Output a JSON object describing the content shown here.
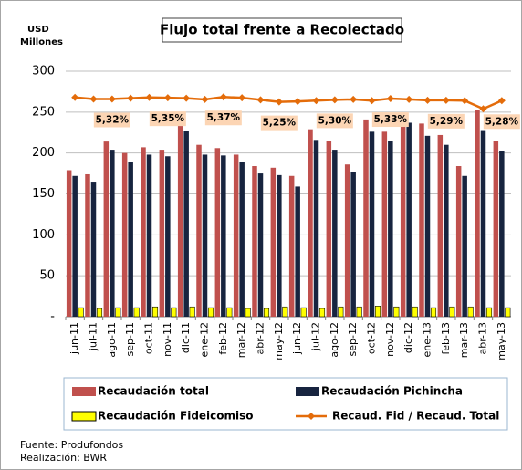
{
  "chart_data": {
    "type": "bar",
    "title": "Flujo total frente a Recolectado",
    "y_label_lines": [
      "USD",
      "Millones"
    ],
    "categories": [
      "jun-11",
      "jul-11",
      "ago-11",
      "sep-11",
      "oct-11",
      "nov-11",
      "dic-11",
      "ene-12",
      "feb-12",
      "mar-12",
      "abr-12",
      "may-12",
      "jun-12",
      "jul-12",
      "ago-12",
      "sep-12",
      "oct-12",
      "nov-12",
      "dic-12",
      "ene-13",
      "feb-13",
      "mar-13",
      "abr-13",
      "may-13"
    ],
    "series": [
      {
        "name": "Recaudación total",
        "color": "#c0504d",
        "values": [
          179,
          174,
          214,
          200,
          207,
          204,
          239,
          210,
          206,
          198,
          184,
          182,
          172,
          229,
          215,
          186,
          241,
          226,
          237,
          236,
          222,
          184,
          253,
          215
        ]
      },
      {
        "name": "Recaudación Pichincha",
        "color": "#17243f",
        "values": [
          172,
          165,
          204,
          189,
          198,
          196,
          227,
          198,
          197,
          189,
          175,
          173,
          159,
          216,
          204,
          177,
          226,
          215,
          237,
          221,
          210,
          172,
          228,
          202
        ]
      },
      {
        "name": "Recaudación Fideicomiso",
        "color": "#ffff00",
        "values": [
          11,
          10,
          11,
          11,
          12,
          11,
          12,
          11,
          11,
          10,
          10,
          12,
          11,
          10,
          12,
          12,
          13,
          12,
          12,
          11,
          12,
          12,
          11,
          11
        ]
      },
      {
        "name": "Recaud. Fid / Recaud. Total",
        "color": "#e46c0a",
        "axis": "y2",
        "type": "line",
        "values": [
          5.36,
          5.32,
          5.32,
          5.34,
          5.36,
          5.35,
          5.34,
          5.31,
          5.37,
          5.35,
          5.3,
          5.25,
          5.26,
          5.28,
          5.3,
          5.31,
          5.28,
          5.33,
          5.31,
          5.29,
          5.29,
          5.28,
          5.08,
          5.28
        ],
        "value_labels": [
          null,
          null,
          "5,32%",
          null,
          null,
          "5,35%",
          null,
          null,
          "5,37%",
          null,
          null,
          "5,25%",
          null,
          null,
          "5,30%",
          null,
          null,
          "5,33%",
          null,
          null,
          "5,29%",
          null,
          null,
          "5,28%"
        ]
      }
    ],
    "ylim": [
      0,
      300
    ],
    "yticks": [
      {
        "value": 0,
        "label": "-"
      },
      50,
      100,
      150,
      200,
      250,
      300
    ],
    "y2lim": [
      0,
      6
    ],
    "grid": true,
    "footer": [
      "Fuente:   Produfondos",
      "Realización:   BWR"
    ]
  }
}
